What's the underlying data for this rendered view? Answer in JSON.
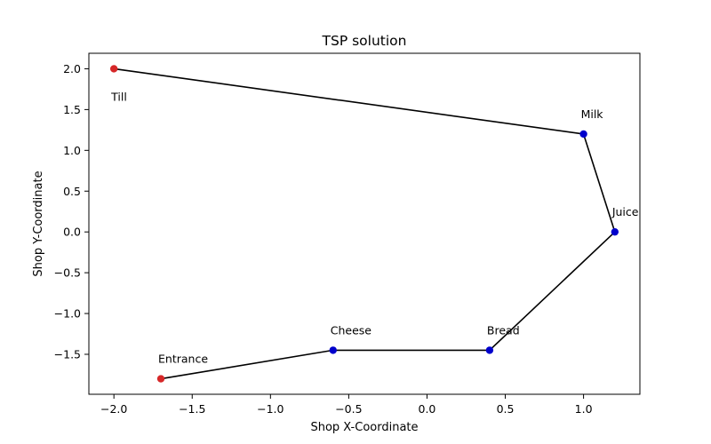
{
  "chart_data": {
    "type": "scatter",
    "title": "TSP solution",
    "xlabel": "Shop X-Coordinate",
    "ylabel": "Shop Y-Coordinate",
    "xlim": [
      -2.16,
      1.36
    ],
    "ylim": [
      -1.99,
      2.19
    ],
    "grid": false,
    "x_ticks": [
      -2.0,
      -1.5,
      -1.0,
      -0.5,
      0.0,
      0.5,
      1.0
    ],
    "x_tick_labels": [
      "−2.0",
      "−1.5",
      "−1.0",
      "−0.5",
      "0.0",
      "0.5",
      "1.0"
    ],
    "y_ticks": [
      -1.5,
      -1.0,
      -0.5,
      0.0,
      0.5,
      1.0,
      1.5,
      2.0
    ],
    "y_tick_labels": [
      "−1.5",
      "−1.0",
      "−0.5",
      "0.0",
      "0.5",
      "1.0",
      "1.5",
      "2.0"
    ],
    "points": [
      {
        "label": "Entrance",
        "x": -1.7,
        "y": -1.8,
        "color": "#d62728",
        "label_pos": "above"
      },
      {
        "label": "Cheese",
        "x": -0.6,
        "y": -1.45,
        "color": "#0000cc",
        "label_pos": "above"
      },
      {
        "label": "Bread",
        "x": 0.4,
        "y": -1.45,
        "color": "#0000cc",
        "label_pos": "above"
      },
      {
        "label": "Juice",
        "x": 1.2,
        "y": 0.0,
        "color": "#0000cc",
        "label_pos": "above"
      },
      {
        "label": "Milk",
        "x": 1.0,
        "y": 1.2,
        "color": "#0000cc",
        "label_pos": "above"
      },
      {
        "label": "Till",
        "x": -2.0,
        "y": 2.0,
        "color": "#d62728",
        "label_pos": "below"
      }
    ],
    "route": [
      "Entrance",
      "Cheese",
      "Bread",
      "Juice",
      "Milk",
      "Till"
    ],
    "route_color": "#000000"
  }
}
